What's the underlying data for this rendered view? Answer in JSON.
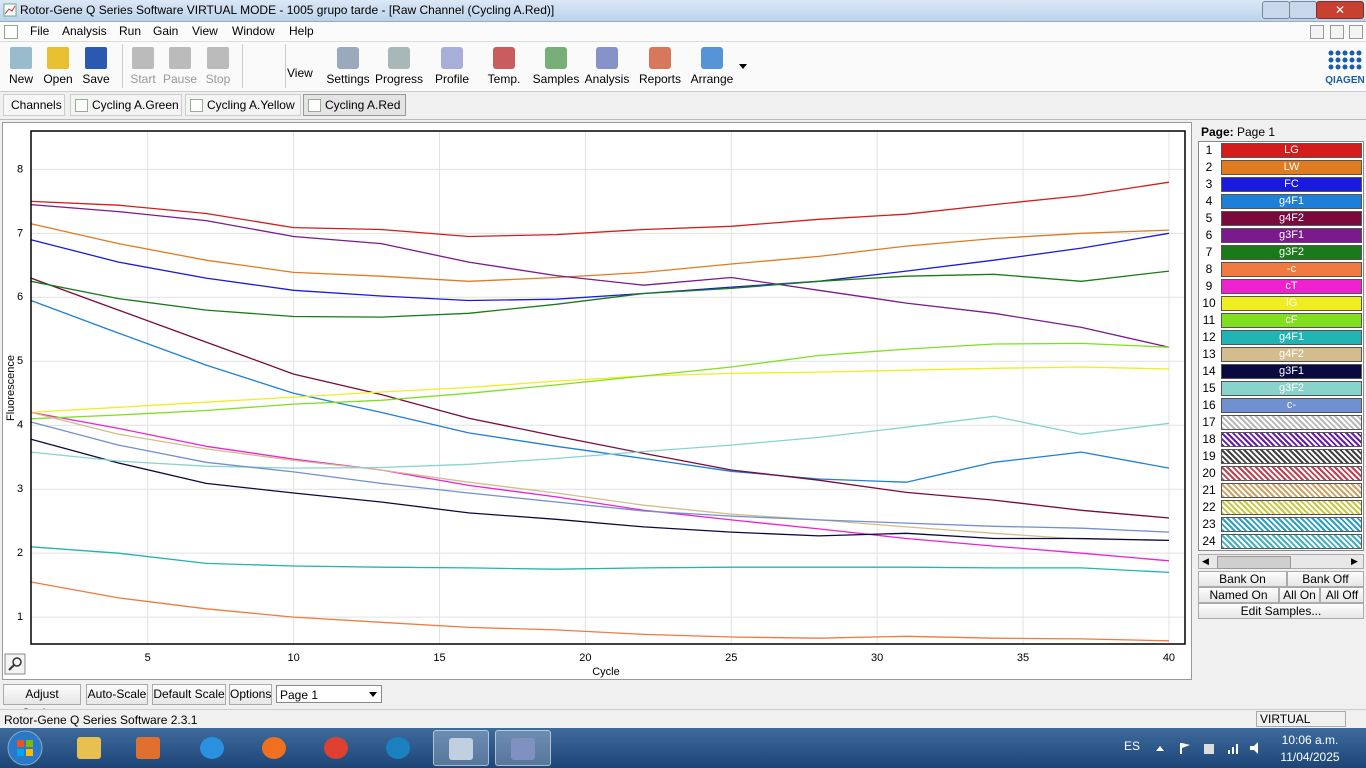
{
  "window": {
    "title": "Rotor-Gene Q Series Software VIRTUAL MODE - 1005 grupo tarde - [Raw Channel (Cycling A.Red)]"
  },
  "menu": [
    "File",
    "Analysis",
    "Run",
    "Gain",
    "View",
    "Window",
    "Help"
  ],
  "toolbar": {
    "left": [
      "New",
      "Open",
      "Save",
      "Start",
      "Pause",
      "Stop"
    ],
    "view_label": "View",
    "right": [
      "Settings",
      "Progress",
      "Profile",
      "Temp.",
      "Samples",
      "Analysis",
      "Reports",
      "Arrange"
    ]
  },
  "logo": "QIAGEN",
  "channels": {
    "label": "Channels",
    "tabs": [
      "Cycling A.Green",
      "Cycling A.Yellow",
      "Cycling A.Red"
    ]
  },
  "chart_data": {
    "type": "line",
    "x_label": "Cycle",
    "y_label": "Fluorescence",
    "x": [
      1,
      4,
      7,
      10,
      13,
      16,
      19,
      22,
      25,
      28,
      31,
      34,
      37,
      40
    ],
    "xlim": [
      1,
      40.55
    ],
    "ylim": [
      0.58,
      8.6
    ],
    "xticks": [
      5,
      10,
      15,
      20,
      25,
      30,
      35,
      40
    ],
    "yticks": [
      1,
      2,
      3,
      4,
      5,
      6,
      7,
      8
    ],
    "grid": true,
    "series": [
      {
        "name": "LG",
        "color": "#d41c1c",
        "values": [
          7.5,
          7.44,
          7.31,
          7.09,
          7.06,
          6.95,
          6.98,
          7.06,
          7.11,
          7.22,
          7.3,
          7.45,
          7.59,
          7.8
        ]
      },
      {
        "name": "LW",
        "color": "#e07b20",
        "values": [
          7.15,
          6.84,
          6.58,
          6.39,
          6.33,
          6.25,
          6.31,
          6.39,
          6.52,
          6.64,
          6.8,
          6.92,
          7.0,
          7.05
        ]
      },
      {
        "name": "FC",
        "color": "#1a1adf",
        "values": [
          6.9,
          6.55,
          6.3,
          6.11,
          6.02,
          5.95,
          5.97,
          6.06,
          6.16,
          6.25,
          6.41,
          6.58,
          6.77,
          7.0
        ]
      },
      {
        "name": "g4F1",
        "color": "#1e7fd8",
        "values": [
          5.95,
          5.44,
          4.94,
          4.5,
          4.2,
          3.88,
          3.67,
          3.48,
          3.28,
          3.16,
          3.11,
          3.42,
          3.58,
          3.33
        ]
      },
      {
        "name": "g4F2",
        "color": "#7a0a3c",
        "values": [
          6.3,
          5.8,
          5.3,
          4.8,
          4.48,
          4.11,
          3.83,
          3.56,
          3.3,
          3.14,
          2.95,
          2.83,
          2.67,
          2.55
        ]
      },
      {
        "name": "g3F1",
        "color": "#7a1a8c",
        "values": [
          7.45,
          7.34,
          7.2,
          6.95,
          6.84,
          6.55,
          6.34,
          6.19,
          6.31,
          6.11,
          5.91,
          5.75,
          5.53,
          5.22
        ]
      },
      {
        "name": "g3F2",
        "color": "#1a7a1a",
        "values": [
          6.25,
          5.98,
          5.8,
          5.7,
          5.69,
          5.75,
          5.89,
          6.06,
          6.14,
          6.25,
          6.33,
          6.36,
          6.25,
          6.41
        ]
      },
      {
        "name": "-c",
        "color": "#f07a40",
        "values": [
          1.55,
          1.3,
          1.13,
          1.0,
          0.92,
          0.84,
          0.8,
          0.73,
          0.69,
          0.67,
          0.7,
          0.67,
          0.66,
          0.63
        ]
      },
      {
        "name": "cT",
        "color": "#ee20d0",
        "values": [
          4.2,
          3.95,
          3.67,
          3.47,
          3.3,
          3.06,
          2.88,
          2.67,
          2.52,
          2.38,
          2.23,
          2.11,
          2.0,
          1.88
        ]
      },
      {
        "name": "IG",
        "color": "#eeee20",
        "values": [
          4.2,
          4.28,
          4.36,
          4.44,
          4.52,
          4.59,
          4.69,
          4.77,
          4.81,
          4.83,
          4.86,
          4.89,
          4.91,
          4.88
        ]
      },
      {
        "name": "cF",
        "color": "#80e020",
        "values": [
          4.1,
          4.16,
          4.23,
          4.33,
          4.39,
          4.5,
          4.63,
          4.77,
          4.91,
          5.09,
          5.19,
          5.27,
          5.28,
          5.22
        ]
      },
      {
        "name": "g4F1",
        "color": "#20b4b4",
        "values": [
          2.1,
          2.0,
          1.84,
          1.8,
          1.78,
          1.77,
          1.75,
          1.77,
          1.78,
          1.78,
          1.78,
          1.77,
          1.77,
          1.7
        ]
      },
      {
        "name": "g4F2",
        "color": "#d4bc8c",
        "values": [
          4.2,
          3.86,
          3.63,
          3.45,
          3.3,
          3.11,
          2.94,
          2.75,
          2.61,
          2.52,
          2.41,
          2.31,
          2.22,
          2.2
        ]
      },
      {
        "name": "g3F1",
        "color": "#0a0a40",
        "values": [
          3.78,
          3.41,
          3.09,
          2.94,
          2.8,
          2.63,
          2.53,
          2.41,
          2.33,
          2.27,
          2.31,
          2.23,
          2.23,
          2.2
        ]
      },
      {
        "name": "g3F2",
        "color": "#88d4cc",
        "values": [
          3.58,
          3.44,
          3.36,
          3.33,
          3.34,
          3.39,
          3.48,
          3.59,
          3.69,
          3.81,
          3.97,
          4.14,
          3.86,
          4.03
        ]
      },
      {
        "name": "c-",
        "color": "#7090d0",
        "values": [
          4.05,
          3.69,
          3.42,
          3.27,
          3.09,
          2.94,
          2.8,
          2.66,
          2.58,
          2.52,
          2.47,
          2.42,
          2.39,
          2.33
        ]
      }
    ]
  },
  "sample_panel": {
    "page_label": "Page:",
    "page_name": "Page 1",
    "numbers": [
      1,
      2,
      3,
      4,
      5,
      6,
      7,
      8,
      9,
      10,
      11,
      12,
      13,
      14,
      15,
      16,
      17,
      18,
      19,
      20,
      21,
      22,
      23,
      24
    ],
    "empty_colors": [
      "#b8b8b8",
      "#6a1aa8",
      "#404040",
      "#c04050",
      "#d0a060",
      "#c8c840",
      "#2aa0c0",
      "#40b0c0"
    ],
    "buttons": [
      "Bank On",
      "Bank Off",
      "Named On",
      "All On",
      "All Off",
      "Edit Samples..."
    ]
  },
  "bottom_bar": {
    "buttons": [
      "Adjust Scale...",
      "Auto-Scale",
      "Default Scale",
      "Options"
    ],
    "page_select": "Page 1"
  },
  "status": {
    "left": "Rotor-Gene Q Series Software 2.3.1",
    "right": "VIRTUAL MODE"
  },
  "taskbar": {
    "language": "ES",
    "time": "10:06 a.m.",
    "date": "11/04/2025"
  }
}
